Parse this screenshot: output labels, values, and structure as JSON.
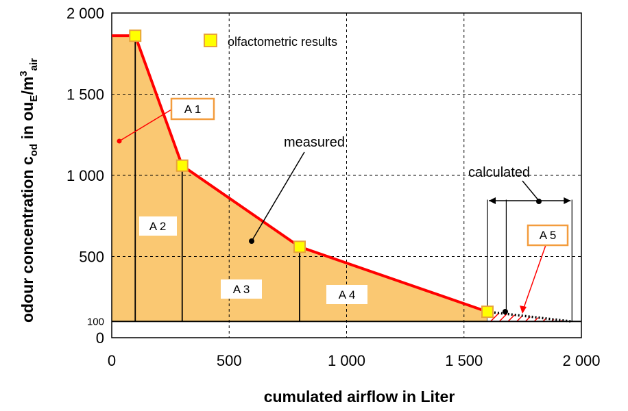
{
  "chart_data": {
    "type": "area",
    "x_axis": {
      "label": "cumulated airflow in Liter",
      "range": [
        0,
        2000
      ],
      "ticks": [
        "0",
        "500",
        "1 000",
        "1 500",
        "2 000"
      ],
      "tick_values": [
        0,
        500,
        1000,
        1500,
        2000
      ]
    },
    "y_axis": {
      "label_main": "odour concentration c",
      "label_sub1": "od",
      "label_mid": " in ou",
      "label_sub2": "E",
      "label_unit": "/m",
      "label_sup": "3",
      "label_sub3": "air",
      "range": [
        0,
        2000
      ],
      "ticks": [
        "0",
        "100",
        "500",
        "1 000",
        "1 500",
        "2 000"
      ],
      "tick_values": [
        0,
        100,
        500,
        1000,
        1500,
        2000
      ]
    },
    "grid": true,
    "baseline": 100,
    "measured_line": {
      "x": [
        0,
        100,
        300,
        800,
        1600
      ],
      "y": [
        1860,
        1860,
        1060,
        560,
        160
      ]
    },
    "calculated_line": {
      "x": [
        1600,
        1960
      ],
      "y": [
        160,
        100
      ]
    },
    "olfactometric_results": {
      "x": [
        100,
        300,
        800,
        1600
      ],
      "y": [
        1860,
        1060,
        560,
        160
      ]
    },
    "area_dividers_x": [
      100,
      300,
      800
    ],
    "calculated_dividers_x": [
      1600,
      1680,
      1960
    ],
    "legend": {
      "label": "olfactometric results",
      "position": "top-center"
    },
    "annotations": {
      "measured": "measured",
      "calculated": "calculated"
    },
    "area_labels": {
      "a1": "A 1",
      "a2": "A 2",
      "a3": "A 3",
      "a4": "A 4",
      "a5": "A 5"
    },
    "colors": {
      "fill": "#fac872",
      "line": "#ff0000",
      "marker_fill": "#ffff00",
      "marker_edge": "#e8a33a",
      "box_border": "#f39c3d",
      "hatch": "#ff0000"
    }
  }
}
